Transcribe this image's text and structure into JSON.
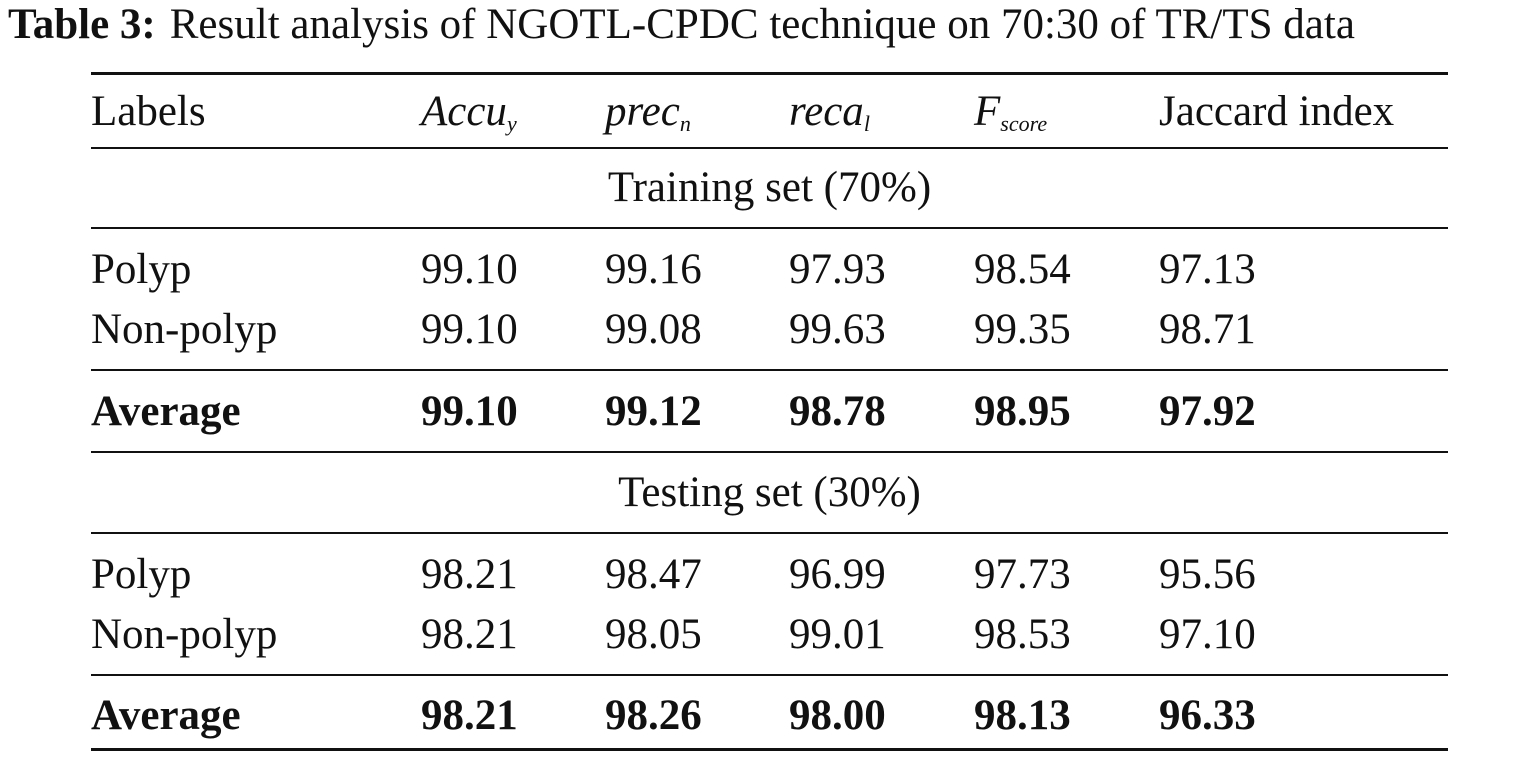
{
  "caption": {
    "label": "Table 3:",
    "text": "Result analysis of NGOTL-CPDC technique on 70:30 of TR/TS data"
  },
  "header": {
    "labels": "Labels",
    "accuracy": {
      "base": "Accu",
      "sub": "y"
    },
    "precision": {
      "base": "prec",
      "sub": "n"
    },
    "recall": {
      "base": "reca",
      "sub": "l"
    },
    "fscore": {
      "base": "F",
      "sub": "score"
    },
    "jaccard": "Jaccard index"
  },
  "training": {
    "title": "Training set (70%)",
    "rows": [
      {
        "label": "Polyp",
        "values": [
          "99.10",
          "99.16",
          "97.93",
          "98.54",
          "97.13"
        ]
      },
      {
        "label": "Non-polyp",
        "values": [
          "99.10",
          "99.08",
          "99.63",
          "99.35",
          "98.71"
        ]
      }
    ],
    "average": {
      "label": "Average",
      "values": [
        "99.10",
        "99.12",
        "98.78",
        "98.95",
        "97.92"
      ]
    }
  },
  "testing": {
    "title": "Testing set (30%)",
    "rows": [
      {
        "label": "Polyp",
        "values": [
          "98.21",
          "98.47",
          "96.99",
          "97.73",
          "95.56"
        ]
      },
      {
        "label": "Non-polyp",
        "values": [
          "98.21",
          "98.05",
          "99.01",
          "98.53",
          "97.10"
        ]
      }
    ],
    "average": {
      "label": "Average",
      "values": [
        "98.21",
        "98.26",
        "98.00",
        "98.13",
        "96.33"
      ]
    }
  }
}
